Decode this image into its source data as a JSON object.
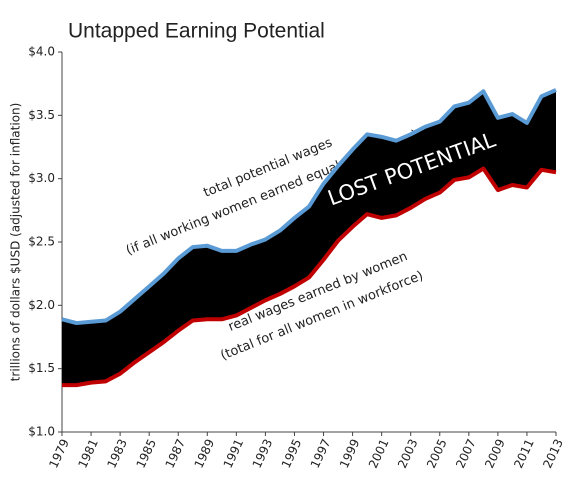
{
  "chart_data": {
    "type": "band-line",
    "title": "Untapped Earning Potential",
    "y_label": "trillions of dollars $USD (adjusted for inflation)",
    "x": [
      1979,
      1980,
      1981,
      1982,
      1983,
      1984,
      1985,
      1986,
      1987,
      1988,
      1989,
      1990,
      1991,
      1992,
      1993,
      1994,
      1995,
      1996,
      1997,
      1998,
      1999,
      2000,
      2001,
      2002,
      2003,
      2004,
      2005,
      2006,
      2007,
      2008,
      2009,
      2010,
      2011,
      2012,
      2013
    ],
    "xlim": [
      1979,
      2013
    ],
    "xticks": [
      1979,
      1981,
      1983,
      1985,
      1987,
      1989,
      1991,
      1993,
      1995,
      1997,
      1999,
      2001,
      2003,
      2005,
      2007,
      2009,
      2011,
      2013
    ],
    "ylim": [
      1.0,
      4.0
    ],
    "yticks": [
      {
        "value": 1.0,
        "label": "$1.0"
      },
      {
        "value": 1.5,
        "label": "$1.5"
      },
      {
        "value": 2.0,
        "label": "$2.0"
      },
      {
        "value": 2.5,
        "label": "$2.5"
      },
      {
        "value": 3.0,
        "label": "$3.0"
      },
      {
        "value": 3.5,
        "label": "$3.5"
      },
      {
        "value": 4.0,
        "label": "$4.0"
      }
    ],
    "fill_color": "#000000",
    "series": [
      {
        "color": "#5b9bd5",
        "values": [
          1.89,
          1.86,
          1.87,
          1.88,
          1.95,
          2.05,
          2.15,
          2.25,
          2.37,
          2.46,
          2.47,
          2.43,
          2.43,
          2.48,
          2.52,
          2.59,
          2.69,
          2.78,
          2.96,
          3.1,
          3.23,
          3.35,
          3.33,
          3.3,
          3.35,
          3.41,
          3.45,
          3.57,
          3.6,
          3.69,
          3.48,
          3.51,
          3.44,
          3.65,
          3.7
        ]
      },
      {
        "color": "#c00000",
        "values": [
          1.37,
          1.37,
          1.39,
          1.4,
          1.46,
          1.55,
          1.63,
          1.71,
          1.8,
          1.88,
          1.89,
          1.89,
          1.92,
          1.98,
          2.04,
          2.09,
          2.15,
          2.22,
          2.36,
          2.51,
          2.62,
          2.72,
          2.69,
          2.71,
          2.77,
          2.84,
          2.89,
          2.99,
          3.01,
          3.08,
          2.91,
          2.95,
          2.93,
          3.07,
          3.05
        ]
      }
    ],
    "annotations": [
      "total potential wages",
      "(if all working women earned equal pay to men)",
      "LOST POTENTIAL",
      "real wages earned by women",
      "(total for all women in workforce)"
    ]
  }
}
